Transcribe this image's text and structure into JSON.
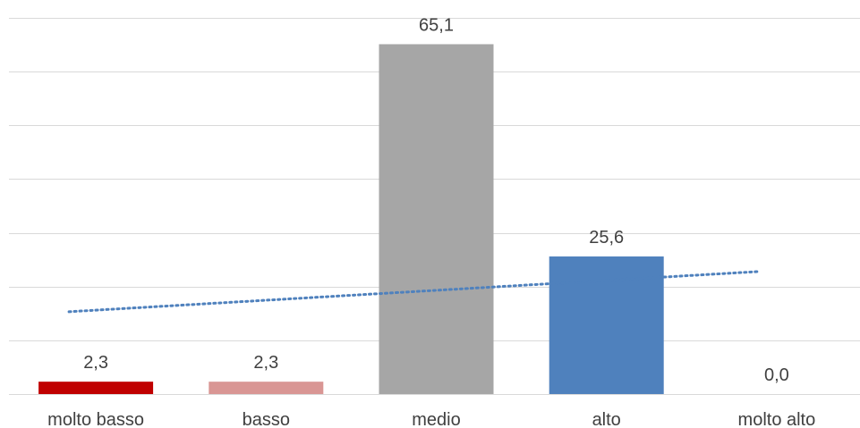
{
  "chart_data": {
    "type": "bar",
    "categories": [
      "molto basso",
      "basso",
      "medio",
      "alto",
      "molto alto"
    ],
    "values": [
      2.3,
      2.3,
      65.1,
      25.6,
      0.0
    ],
    "value_labels": [
      "2,3",
      "2,3",
      "65,1",
      "25,6",
      "0,0"
    ],
    "bar_colors": [
      "#c00000",
      "#d99694",
      "#a6a6a6",
      "#4f81bd",
      "#4f81bd"
    ],
    "ylim": [
      0,
      70
    ],
    "y_gridline_step": 10,
    "grid": true,
    "legend": "none",
    "trendline": {
      "type": "linear",
      "style": "dotted",
      "color": "#4f81bd"
    },
    "title": "",
    "xlabel": "",
    "ylabel": ""
  }
}
